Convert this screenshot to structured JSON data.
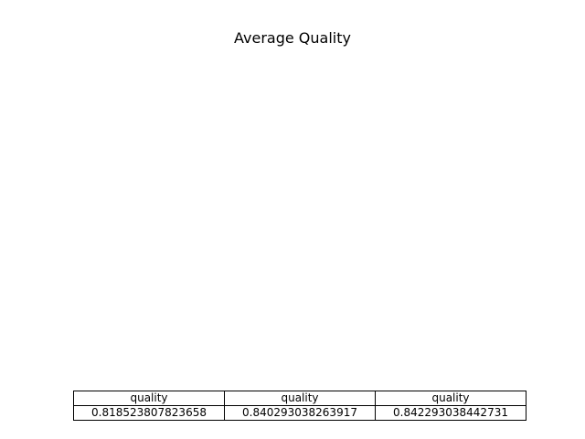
{
  "chart_data": {
    "type": "table",
    "title": "Average Quality",
    "columns": [
      "quality",
      "quality",
      "quality"
    ],
    "rows": [
      [
        "0.818523807823658",
        "0.840293038263917",
        "0.842293038442731"
      ]
    ]
  }
}
